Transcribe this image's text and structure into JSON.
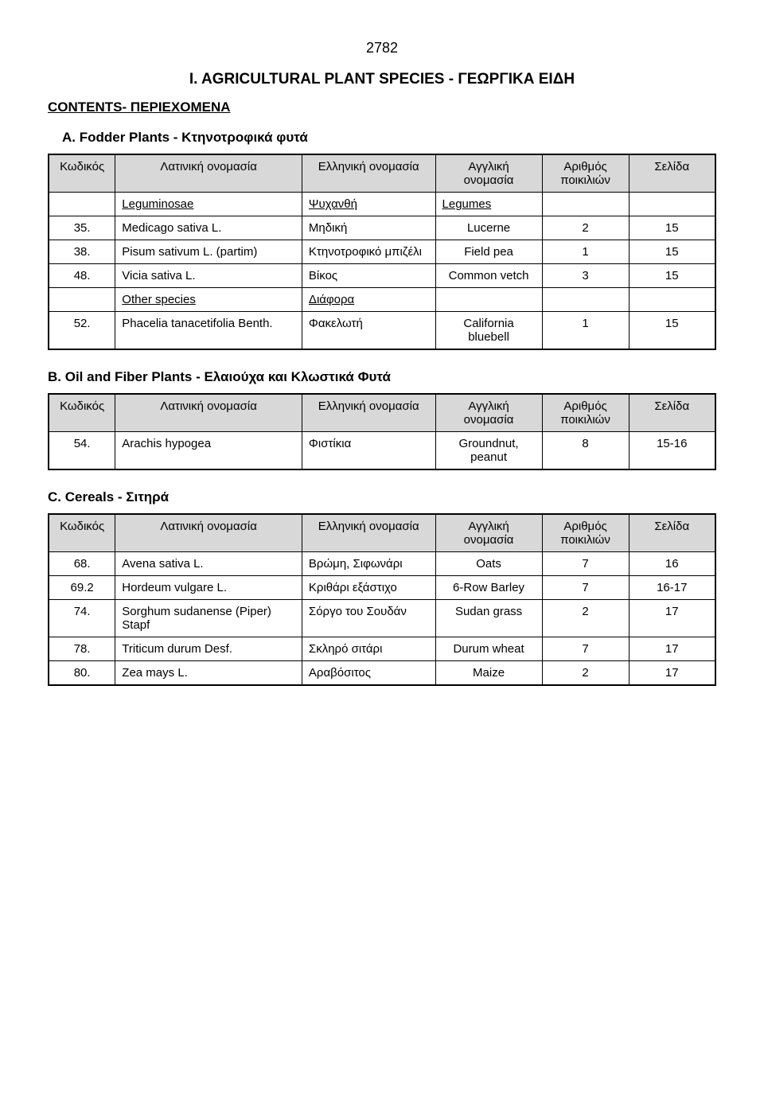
{
  "page_number": "2782",
  "main_title": "I. AGRICULTURAL PLANT SPECIES - ΓΕΩΡΓΙΚΑ ΕΙΔΗ",
  "contents_label": "CONTENTS- ΠΕΡΙΕΧΟΜΕΝΑ",
  "headers": {
    "code": "Κωδικός",
    "latin": "Λατινική ονομασία",
    "greek": "Ελληνική ονομασία",
    "english": "Αγγλική ονομασία",
    "num": "Αριθμός ποικιλιών",
    "page": "Σελίδα"
  },
  "section_a": {
    "title": "A. Fodder Plants - Κτηνοτροφικά φυτά",
    "sub1_latin": "Leguminosae",
    "sub1_greek": "Ψυχανθή",
    "sub1_english": "Legumes",
    "rows": [
      {
        "code": "35.",
        "latin": "Medicago sativa L.",
        "greek": "Μηδική",
        "english": "Lucerne",
        "num": "2",
        "page": "15"
      },
      {
        "code": "38.",
        "latin": "Pisum sativum L. (partim)",
        "greek": "Κτηνοτροφικό μπιζέλι",
        "english": "Field pea",
        "num": "1",
        "page": "15"
      },
      {
        "code": "48.",
        "latin": "Vicia sativa L.",
        "greek": "Βίκος",
        "english": "Common vetch",
        "num": "3",
        "page": "15"
      }
    ],
    "sub2_latin": "Other species",
    "sub2_greek": "Διάφορα",
    "rows2": [
      {
        "code": "52.",
        "latin": "Phacelia tanacetifolia Benth.",
        "greek": "Φακελωτή",
        "english": "California bluebell",
        "num": "1",
        "page": "15"
      }
    ]
  },
  "section_b": {
    "title": "B. Oil and Fiber Plants - Ελαιούχα και Κλωστικά Φυτά",
    "rows": [
      {
        "code": "54.",
        "latin": "Arachis hypogea",
        "greek": "Φιστίκια",
        "english": "Groundnut, peanut",
        "num": "8",
        "page": "15-16"
      }
    ]
  },
  "section_c": {
    "title": "C. Cereals - Σιτηρά",
    "rows": [
      {
        "code": "68.",
        "latin": "Avena sativa L.",
        "greek": "Βρώμη, Σιφωνάρι",
        "english": "Oats",
        "num": "7",
        "page": "16"
      },
      {
        "code": "69.2",
        "latin": "Hordeum vulgare L.",
        "greek": "Κριθάρι εξάστιχο",
        "english": "6-Row Barley",
        "num": "7",
        "page": "16-17"
      },
      {
        "code": "74.",
        "latin": "Sorghum sudanense (Piper) Stapf",
        "greek": "Σόργο του Σουδάν",
        "english": "Sudan grass",
        "num": "2",
        "page": "17"
      },
      {
        "code": "78.",
        "latin": "Triticum durum Desf.",
        "greek": "Σκληρό σιτάρι",
        "english": "Durum wheat",
        "num": "7",
        "page": "17"
      },
      {
        "code": "80.",
        "latin": "Zea mays L.",
        "greek": "Αραβόσιτος",
        "english": "Maize",
        "num": "2",
        "page": "17"
      }
    ]
  }
}
